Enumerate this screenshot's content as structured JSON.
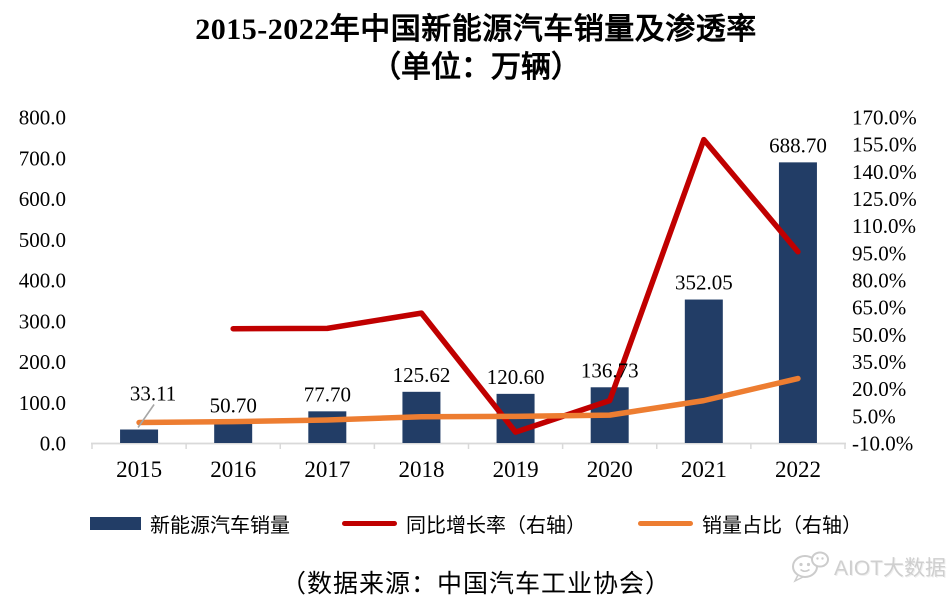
{
  "title": {
    "line1": "2015-2022年中国新能源汽车销量及渗透率",
    "line2": "（单位：万辆）"
  },
  "source_note": "（数据来源：中国汽车工业协会）",
  "watermark": {
    "text": "AIOT大数据",
    "logo": "wechat-chat-bubbles"
  },
  "colors": {
    "bar": "#223D66",
    "yoy_line": "#C00000",
    "share_line": "#ED7D31",
    "axis_line": "#D9D9D9",
    "leader_line": "#A6A6A6",
    "text": "#000000",
    "watermark": "#CFCFCF"
  },
  "chart_data": {
    "type": "combo",
    "title": "2015-2022年中国新能源汽车销量及渗透率（单位：万辆）",
    "categories": [
      "2015",
      "2016",
      "2017",
      "2018",
      "2019",
      "2020",
      "2021",
      "2022"
    ],
    "series": [
      {
        "name": "新能源汽车销量",
        "type": "bar",
        "axis": "left",
        "color": "#223D66",
        "values": [
          33.11,
          50.7,
          77.7,
          125.62,
          120.6,
          136.73,
          352.05,
          688.7
        ],
        "data_labels": [
          "33.11",
          "50.70",
          "77.70",
          "125.62",
          "120.60",
          "136.73",
          "352.05",
          "688.70"
        ]
      },
      {
        "name": "同比增长率（右轴）",
        "type": "line",
        "axis": "right",
        "color": "#C00000",
        "values": [
          null,
          53.1,
          53.3,
          61.7,
          -4.0,
          13.4,
          157.5,
          95.6
        ]
      },
      {
        "name": "销量占比（右轴）",
        "type": "line",
        "axis": "right",
        "color": "#ED7D31",
        "values": [
          1.3,
          1.8,
          2.7,
          4.5,
          4.7,
          5.4,
          13.4,
          25.6
        ]
      }
    ],
    "left_axis": {
      "min": 0,
      "max": 800,
      "step": 100,
      "tick_labels_top_to_bottom": [
        "800.0",
        "700.0",
        "600.0",
        "500.0",
        "400.0",
        "300.0",
        "200.0",
        "100.0",
        "0.0"
      ]
    },
    "right_axis": {
      "min": -10,
      "max": 170,
      "step": 15,
      "tick_labels_top_to_bottom": [
        "170.0%",
        "155.0%",
        "140.0%",
        "125.0%",
        "110.0%",
        "95.0%",
        "80.0%",
        "65.0%",
        "50.0%",
        "35.0%",
        "20.0%",
        "5.0%",
        "-10.0%"
      ]
    },
    "grid": false,
    "legend_position": "bottom"
  }
}
